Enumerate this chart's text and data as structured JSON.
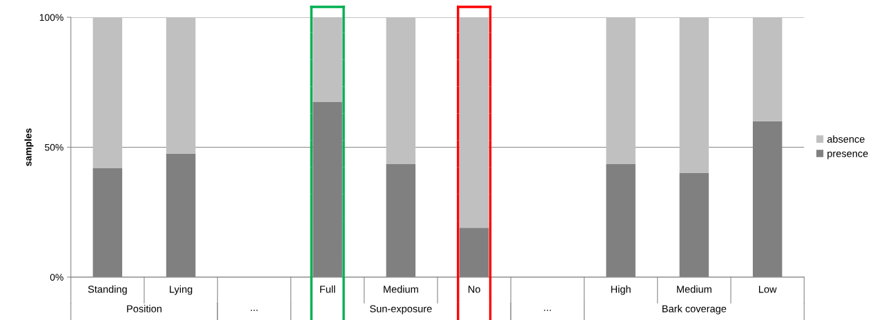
{
  "chart_data": {
    "type": "bar",
    "stacked": true,
    "ylabel": "samples",
    "categories": [
      "Standing",
      "Lying",
      null,
      "Full",
      "Medium",
      "No",
      null,
      "High",
      "Medium",
      "Low"
    ],
    "series": [
      {
        "name": "presence",
        "color": "#808080",
        "values": [
          42,
          47.5,
          null,
          67.5,
          43.5,
          19,
          null,
          43.5,
          40,
          60
        ]
      },
      {
        "name": "absence",
        "color": "#c0c0c0",
        "values": [
          58,
          52.5,
          null,
          32.5,
          56.5,
          81,
          null,
          56.5,
          60,
          40
        ]
      }
    ],
    "ylim": [
      0,
      100
    ],
    "yticks": [
      {
        "value": 0,
        "label": "0%"
      },
      {
        "value": 50,
        "label": "50%"
      },
      {
        "value": 100,
        "label": "100%"
      }
    ],
    "grid": "y",
    "legend": "right",
    "annotations": [
      "Position",
      "...",
      "Sun-exposure",
      "...",
      "Bark coverage"
    ]
  }
}
